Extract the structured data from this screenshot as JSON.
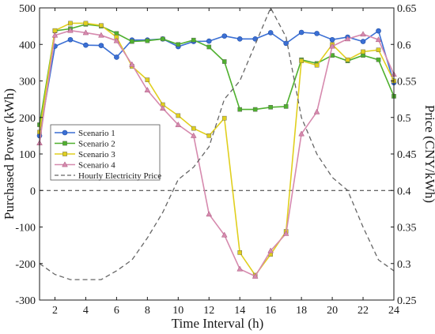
{
  "chart_data": {
    "type": "line",
    "xlabel": "Time Interval (h)",
    "ylabel": "Purchased Power (kWh)",
    "y2label": "Price (CNY/kWh)",
    "xlim": [
      1,
      24
    ],
    "ylim": [
      -300,
      500
    ],
    "y2lim": [
      0.25,
      0.65
    ],
    "xticks": [
      2,
      4,
      6,
      8,
      10,
      12,
      14,
      16,
      18,
      20,
      22,
      24
    ],
    "yticks": [
      -300,
      -200,
      -100,
      0,
      100,
      200,
      300,
      400,
      500
    ],
    "y2ticks": [
      0.25,
      0.3,
      0.35,
      0.4,
      0.45,
      0.5,
      0.55,
      0.6,
      0.65
    ],
    "legend_position": "center-left",
    "x": [
      1,
      2,
      3,
      4,
      5,
      6,
      7,
      8,
      9,
      10,
      11,
      12,
      13,
      14,
      15,
      16,
      17,
      18,
      19,
      20,
      21,
      22,
      23,
      24
    ],
    "series": [
      {
        "name": "Scenario 1",
        "color": "#3b6fd4",
        "marker": "circle",
        "axis": "left",
        "values": [
          150,
          395,
          413,
          398,
          397,
          365,
          412,
          412,
          415,
          394,
          408,
          409,
          423,
          415,
          415,
          432,
          403,
          433,
          430,
          413,
          420,
          408,
          437,
          295
        ]
      },
      {
        "name": "Scenario 2",
        "color": "#4fb02e",
        "marker": "square",
        "axis": "left",
        "values": [
          180,
          437,
          443,
          455,
          450,
          430,
          408,
          410,
          415,
          400,
          412,
          393,
          353,
          222,
          222,
          228,
          230,
          358,
          348,
          370,
          355,
          370,
          358,
          258
        ]
      },
      {
        "name": "Scenario 3",
        "color": "#e0cf1e",
        "marker": "square",
        "axis": "left",
        "values": [
          160,
          438,
          458,
          458,
          452,
          420,
          340,
          303,
          235,
          205,
          170,
          150,
          198,
          -170,
          -232,
          -175,
          -112,
          355,
          343,
          400,
          358,
          380,
          385,
          300
        ]
      },
      {
        "name": "Scenario 4",
        "color": "#d68aae",
        "marker": "triangle",
        "axis": "left",
        "values": [
          130,
          425,
          438,
          432,
          425,
          410,
          345,
          275,
          225,
          180,
          150,
          -65,
          -122,
          -215,
          -235,
          -165,
          -118,
          155,
          215,
          395,
          415,
          428,
          413,
          318
        ]
      },
      {
        "name": "Hourly Electricity Price",
        "color": "#666666",
        "dashed": true,
        "axis": "right",
        "values": [
          0.3,
          0.285,
          0.278,
          0.278,
          0.278,
          0.29,
          0.305,
          0.335,
          0.37,
          0.415,
          0.432,
          0.46,
          0.525,
          0.55,
          0.6,
          0.65,
          0.61,
          0.5,
          0.45,
          0.418,
          0.4,
          0.35,
          0.305,
          0.29
        ]
      }
    ],
    "reference_lines": [
      {
        "axis": "left",
        "y": 0,
        "style": "dashed",
        "color": "#333333"
      }
    ]
  }
}
